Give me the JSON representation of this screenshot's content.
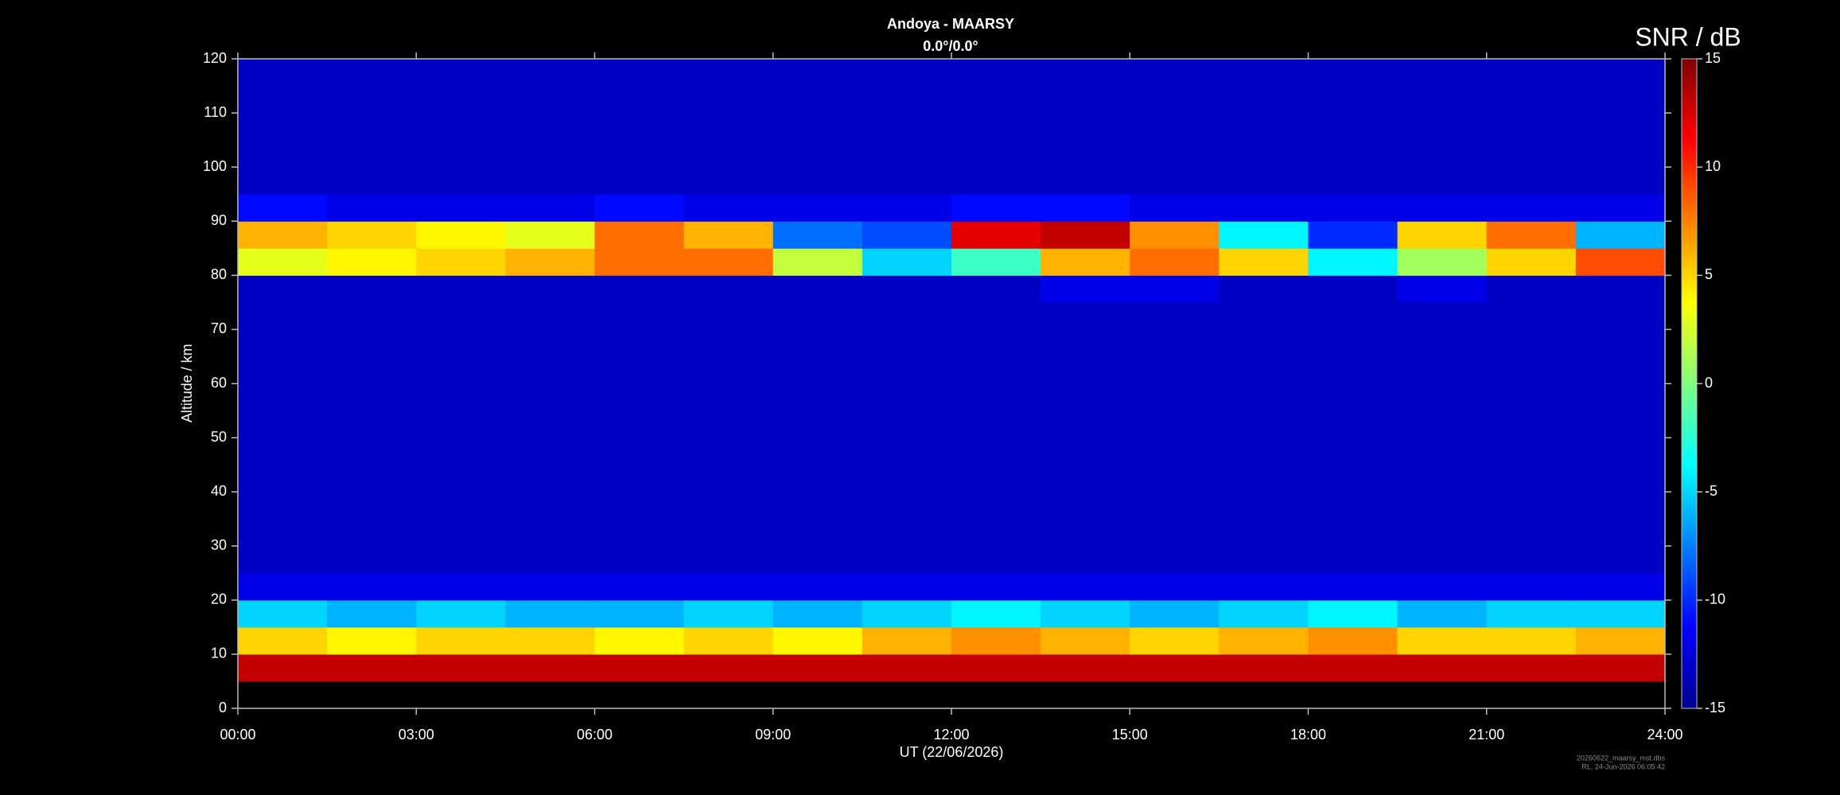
{
  "chart_data": {
    "type": "heatmap",
    "title": "Andoya - MAARSY",
    "subtitle": "0.0°/0.0°",
    "xlabel": "UT (22/06/2026)",
    "ylabel": "Altitude / km",
    "colorbar_label": "SNR / dB",
    "footnote": [
      "20260622_maarsy_mst.dbs",
      "RL, 24-Jun-2026 06:05:42"
    ],
    "colormap": "jet",
    "xlim": [
      0,
      24
    ],
    "xticks": [
      {
        "value": 0,
        "label": "00:00"
      },
      {
        "value": 3,
        "label": "03:00"
      },
      {
        "value": 6,
        "label": "06:00"
      },
      {
        "value": 9,
        "label": "09:00"
      },
      {
        "value": 12,
        "label": "12:00"
      },
      {
        "value": 15,
        "label": "15:00"
      },
      {
        "value": 18,
        "label": "18:00"
      },
      {
        "value": 21,
        "label": "21:00"
      },
      {
        "value": 24,
        "label": "24:00"
      }
    ],
    "ylim": [
      0,
      120
    ],
    "yticks": [
      0,
      10,
      20,
      30,
      40,
      50,
      60,
      70,
      80,
      90,
      100,
      110,
      120
    ],
    "zlim": [
      -15,
      15
    ],
    "zticks": [
      -15,
      -10,
      -5,
      0,
      5,
      10,
      15
    ],
    "x_bins": [
      0,
      1.5,
      3,
      4.5,
      6,
      7.5,
      9,
      10.5,
      12,
      13.5,
      15,
      16.5,
      18,
      19.5,
      21,
      22.5,
      24
    ],
    "y_bins": [
      0,
      5,
      10,
      15,
      20,
      25,
      30,
      35,
      40,
      45,
      50,
      55,
      60,
      65,
      70,
      75,
      80,
      85,
      90,
      95,
      100,
      105,
      110,
      115,
      120
    ],
    "z": [
      [
        null,
        null,
        null,
        null,
        null,
        null,
        null,
        null,
        null,
        null,
        null,
        null,
        null,
        null,
        null,
        null
      ],
      [
        13,
        13,
        13,
        13,
        13,
        13,
        13,
        13,
        13,
        13,
        13,
        13,
        13,
        13,
        13,
        13
      ],
      [
        5,
        4,
        5,
        5,
        4,
        5,
        4,
        6,
        7,
        6,
        5,
        6,
        7,
        5,
        5,
        6
      ],
      [
        -5,
        -6,
        -5,
        -6,
        -6,
        -5,
        -6,
        -5,
        -4,
        -5,
        -6,
        -5,
        -4,
        -6,
        -5,
        -5
      ],
      [
        -12,
        -12,
        -12,
        -12,
        -12,
        -12,
        -12,
        -12,
        -12,
        -12,
        -12,
        -12,
        -12,
        -12,
        -12,
        -12
      ],
      [
        -13,
        -13,
        -13,
        -13,
        -13,
        -13,
        -13,
        -13,
        -13,
        -13,
        -13,
        -13,
        -13,
        -13,
        -13,
        -13
      ],
      [
        -13,
        -13,
        -13,
        -13,
        -13,
        -13,
        -13,
        -13,
        -13,
        -13,
        -13,
        -13,
        -13,
        -13,
        -13,
        -13
      ],
      [
        -13,
        -13,
        -13,
        -13,
        -13,
        -13,
        -13,
        -13,
        -13,
        -13,
        -13,
        -13,
        -13,
        -13,
        -13,
        -13
      ],
      [
        -13,
        -13,
        -13,
        -13,
        -13,
        -13,
        -13,
        -13,
        -13,
        -13,
        -13,
        -13,
        -13,
        -13,
        -13,
        -13
      ],
      [
        -13,
        -13,
        -13,
        -13,
        -13,
        -13,
        -13,
        -13,
        -13,
        -13,
        -13,
        -13,
        -13,
        -13,
        -13,
        -13
      ],
      [
        -13,
        -13,
        -13,
        -13,
        -13,
        -13,
        -13,
        -13,
        -13,
        -13,
        -13,
        -13,
        -13,
        -13,
        -13,
        -13
      ],
      [
        -13,
        -13,
        -13,
        -13,
        -13,
        -13,
        -13,
        -13,
        -13,
        -13,
        -13,
        -13,
        -13,
        -13,
        -13,
        -13
      ],
      [
        -13,
        -13,
        -13,
        -13,
        -13,
        -13,
        -13,
        -13,
        -13,
        -13,
        -13,
        -13,
        -13,
        -13,
        -13,
        -13
      ],
      [
        -13,
        -13,
        -13,
        -13,
        -13,
        -13,
        -13,
        -13,
        -13,
        -13,
        -13,
        -13,
        -13,
        -13,
        -13,
        -13
      ],
      [
        -13,
        -13,
        -13,
        -13,
        -13,
        -13,
        -13,
        -13,
        -13,
        -13,
        -13,
        -13,
        -13,
        -13,
        -13,
        -13
      ],
      [
        -13,
        -13,
        -13,
        -13,
        -13,
        -13,
        -13,
        -13,
        -13,
        -12,
        -12,
        -13,
        -13,
        -12,
        -13,
        -13
      ],
      [
        3,
        4,
        5,
        6,
        8,
        8,
        2,
        -5,
        -2,
        6,
        8,
        5,
        -4,
        1,
        5,
        9
      ],
      [
        6,
        5,
        4,
        3,
        8,
        6,
        -8,
        -9,
        12,
        13,
        7,
        -4,
        -10,
        5,
        8,
        -6
      ],
      [
        -11,
        -12,
        -12,
        -12,
        -11,
        -12,
        -12,
        -12,
        -11,
        -11,
        -12,
        -12,
        -12,
        -12,
        -12,
        -12
      ],
      [
        -13,
        -13,
        -13,
        -13,
        -13,
        -13,
        -13,
        -13,
        -13,
        -13,
        -13,
        -13,
        -13,
        -13,
        -13,
        -13
      ],
      [
        -13,
        -13,
        -13,
        -13,
        -13,
        -13,
        -13,
        -13,
        -13,
        -13,
        -13,
        -13,
        -13,
        -13,
        -13,
        -13
      ],
      [
        -13,
        -13,
        -13,
        -13,
        -13,
        -13,
        -13,
        -13,
        -13,
        -13,
        -13,
        -13,
        -13,
        -13,
        -13,
        -13
      ],
      [
        -13,
        -13,
        -13,
        -13,
        -13,
        -13,
        -13,
        -13,
        -13,
        -13,
        -13,
        -13,
        -13,
        -13,
        -13,
        -13
      ],
      [
        -13,
        -13,
        -13,
        -13,
        -13,
        -13,
        -13,
        -13,
        -13,
        -13,
        -13,
        -13,
        -13,
        -13,
        -13,
        -13
      ]
    ]
  }
}
